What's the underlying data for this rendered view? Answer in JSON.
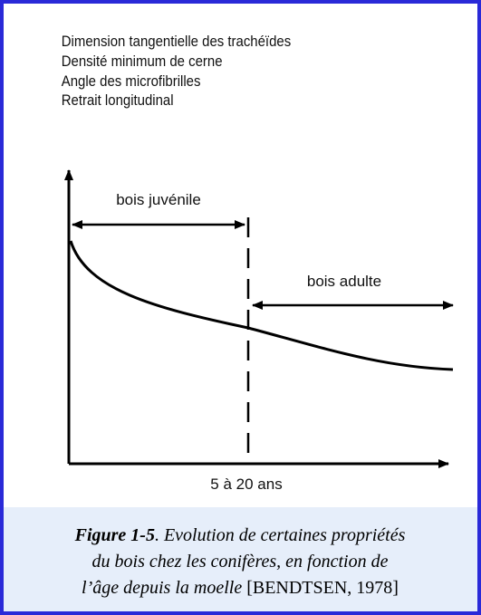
{
  "legend": [
    "Dimension tangentielle des trachéïdes",
    "Densité minimum de cerne",
    "Angle des microfibrilles",
    "Retrait longitudinal"
  ],
  "zones": {
    "juvenile": "bois juvénile",
    "adult": "bois adulte"
  },
  "x_label": "5 à 20 ans",
  "caption": {
    "figure": "Figure 1-5",
    "line1": ". Evolution de certaines propriétés",
    "line2": "du bois chez les conifères, en fonction de",
    "line3": "l’âge depuis la moelle",
    "reference": " [BENDTSEN, 1978]"
  }
}
